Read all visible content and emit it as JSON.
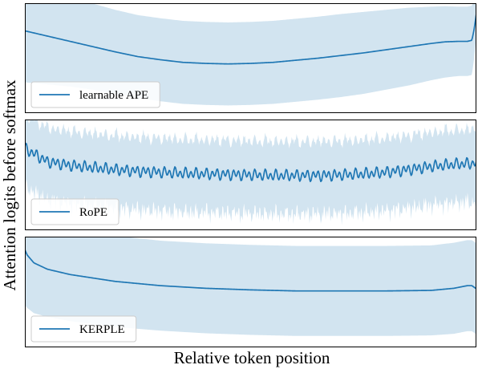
{
  "chart_data": {
    "type": "line",
    "xlabel": "Relative token position",
    "ylabel": "Attention logits before softmax",
    "x_ticks_shown": false,
    "y_ticks_shown": false,
    "grid": false,
    "shared_x": true,
    "panels": [
      {
        "legend": "learnable APE",
        "legend_position": "lower-left",
        "color": "#1f77b4",
        "band_color": "#1f77b4",
        "ylim": [
          -1,
          1
        ],
        "x": [
          0,
          0.05,
          0.1,
          0.15,
          0.2,
          0.25,
          0.3,
          0.35,
          0.4,
          0.45,
          0.5,
          0.55,
          0.6,
          0.65,
          0.7,
          0.75,
          0.8,
          0.85,
          0.9,
          0.93,
          0.96,
          0.98,
          0.99,
          0.995,
          1.0
        ],
        "mean": [
          0.52,
          0.42,
          0.32,
          0.22,
          0.12,
          0.03,
          -0.03,
          -0.08,
          -0.1,
          -0.11,
          -0.1,
          -0.08,
          -0.04,
          0.0,
          0.05,
          0.1,
          0.16,
          0.22,
          0.28,
          0.31,
          0.32,
          0.32,
          0.34,
          0.55,
          0.85
        ],
        "std": [
          0.98,
          0.92,
          0.86,
          0.82,
          0.8,
          0.79,
          0.79,
          0.79,
          0.79,
          0.79,
          0.79,
          0.79,
          0.79,
          0.79,
          0.79,
          0.78,
          0.76,
          0.74,
          0.7,
          0.68,
          0.66,
          0.66,
          0.66,
          0.55,
          0.4
        ]
      },
      {
        "legend": "RoPE",
        "legend_position": "lower-left",
        "color": "#1f77b4",
        "band_color": "#1f77b4",
        "ylim": [
          -1,
          1
        ],
        "x": [
          0,
          0.05,
          0.1,
          0.15,
          0.2,
          0.25,
          0.3,
          0.35,
          0.4,
          0.45,
          0.5,
          0.55,
          0.6,
          0.65,
          0.7,
          0.75,
          0.8,
          0.85,
          0.9,
          0.95,
          1.0
        ],
        "mean": [
          0.5,
          0.25,
          0.18,
          0.14,
          0.1,
          0.07,
          0.05,
          0.03,
          0.02,
          0.01,
          0.0,
          -0.01,
          -0.01,
          -0.01,
          0.0,
          0.02,
          0.05,
          0.1,
          0.16,
          0.2,
          0.22
        ],
        "std": [
          0.72,
          0.72,
          0.72,
          0.72,
          0.72,
          0.72,
          0.72,
          0.72,
          0.72,
          0.72,
          0.72,
          0.72,
          0.72,
          0.72,
          0.72,
          0.72,
          0.72,
          0.72,
          0.72,
          0.72,
          0.72
        ],
        "oscillation_cycles": 85,
        "oscillation_amplitude": 0.12
      },
      {
        "legend": "KERPLE",
        "legend_position": "lower-left",
        "color": "#1f77b4",
        "band_color": "#1f77b4",
        "ylim": [
          -1,
          1
        ],
        "x": [
          0,
          0.005,
          0.02,
          0.05,
          0.1,
          0.2,
          0.3,
          0.4,
          0.5,
          0.6,
          0.7,
          0.8,
          0.9,
          0.95,
          0.98,
          0.99,
          1.0
        ],
        "mean": [
          0.8,
          0.7,
          0.55,
          0.43,
          0.33,
          0.2,
          0.12,
          0.07,
          0.04,
          0.02,
          0.02,
          0.02,
          0.03,
          0.07,
          0.12,
          0.12,
          0.06
        ],
        "std": [
          1.05,
          1.0,
          0.95,
          0.9,
          0.88,
          0.86,
          0.85,
          0.85,
          0.85,
          0.85,
          0.85,
          0.85,
          0.85,
          0.86,
          0.86,
          0.86,
          0.86
        ]
      }
    ]
  }
}
